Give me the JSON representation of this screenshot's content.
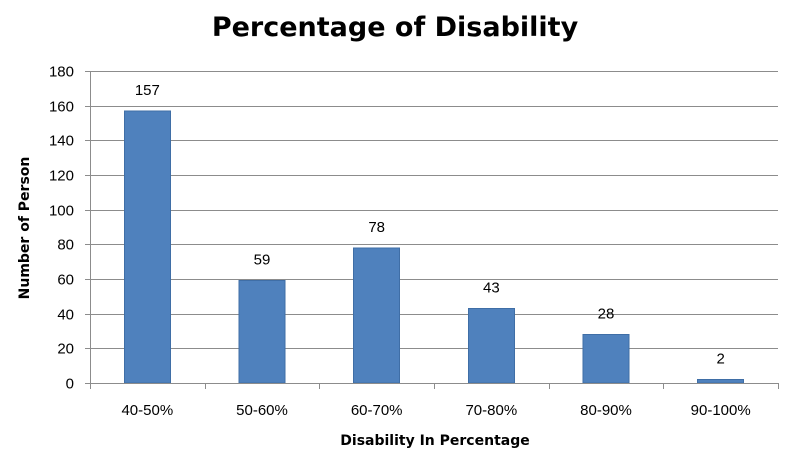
{
  "chart_data": {
    "type": "bar",
    "title": "Percentage of Disability",
    "xlabel": "Disability In Percentage",
    "ylabel": "Number of Person",
    "categories": [
      "40-50%",
      "50-60%",
      "60-70%",
      "70-80%",
      "80-90%",
      "90-100%"
    ],
    "values": [
      157,
      59,
      78,
      43,
      28,
      2
    ],
    "data_labels": [
      "157",
      "59",
      "78",
      "43",
      "28",
      "2"
    ],
    "ylim": [
      0,
      180
    ],
    "yticks": [
      0,
      20,
      40,
      60,
      80,
      100,
      120,
      140,
      160,
      180
    ],
    "ytick_labels": [
      "0",
      "20",
      "40",
      "60",
      "80",
      "100",
      "120",
      "140",
      "160",
      "180"
    ],
    "grid": true,
    "legend": "none",
    "colors": {
      "bar": "#4f81bd",
      "bar_edge": "#3f6ea6",
      "grid": "#8c8c8c"
    }
  }
}
